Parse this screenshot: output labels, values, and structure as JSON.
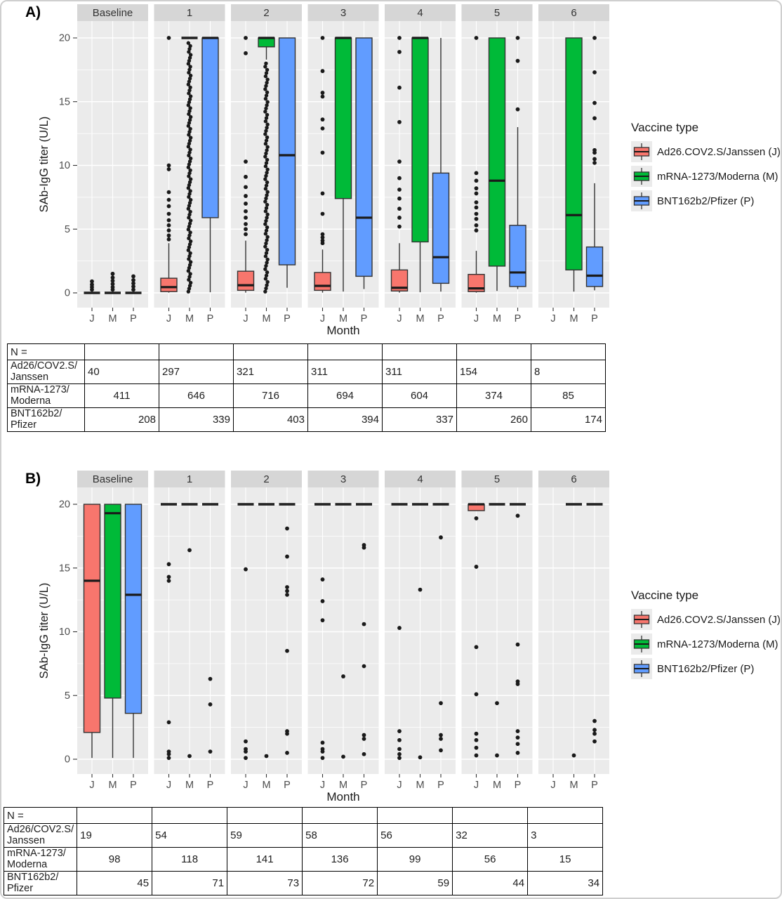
{
  "legend": {
    "title": "Vaccine type",
    "items": [
      {
        "key": "J",
        "label": "Ad26.COV2.S/Janssen (J)",
        "color": "#F8766D"
      },
      {
        "key": "M",
        "label": "mRNA-1273/Moderna (M)",
        "color": "#00BA38"
      },
      {
        "key": "P",
        "label": "BNT162b2/Pfizer (P)",
        "color": "#619CFF"
      }
    ]
  },
  "chart_data": [
    {
      "type": "boxplot-faceted",
      "panel_label": "A)",
      "ylabel": "SAb-IgG titer (U/L)",
      "xlabel": "Month",
      "ylim": [
        0,
        20
      ],
      "yticks": [
        0,
        5,
        10,
        15,
        20
      ],
      "grid": true,
      "facets": [
        "Baseline",
        "1",
        "2",
        "3",
        "4",
        "5",
        "6"
      ],
      "groups": [
        "J",
        "M",
        "P"
      ],
      "boxes": [
        {
          "f": "Baseline",
          "g": "J",
          "lo": 0,
          "q1": 0,
          "med": 0,
          "q3": 0,
          "hi": 0,
          "out": [
            0.25,
            0.45,
            0.65,
            0.9
          ]
        },
        {
          "f": "Baseline",
          "g": "M",
          "lo": 0,
          "q1": 0,
          "med": 0,
          "q3": 0,
          "hi": 0,
          "out": [
            0.25,
            0.45,
            0.7,
            0.95,
            1.2,
            1.5
          ]
        },
        {
          "f": "Baseline",
          "g": "P",
          "lo": 0,
          "q1": 0,
          "med": 0,
          "q3": 0,
          "hi": 0,
          "out": [
            0.25,
            0.5,
            0.75,
            1.0,
            1.3
          ]
        },
        {
          "f": "1",
          "g": "J",
          "lo": 0.02,
          "q1": 0.1,
          "med": 0.45,
          "q3": 1.15,
          "hi": 3.9,
          "out": [
            4.2,
            4.5,
            4.9,
            5.3,
            5.7,
            6.2,
            6.8,
            7.3,
            7.9,
            9.7,
            10.0,
            20
          ]
        },
        {
          "f": "1",
          "g": "M",
          "lo": 20,
          "q1": 20,
          "med": 20,
          "q3": 20,
          "hi": 20,
          "dense": [
            0.1,
            19.6,
            85
          ]
        },
        {
          "f": "1",
          "g": "P",
          "lo": 0.05,
          "q1": 5.9,
          "med": 20,
          "q3": 20,
          "hi": 20,
          "out": []
        },
        {
          "f": "2",
          "g": "J",
          "lo": 0.02,
          "q1": 0.2,
          "med": 0.6,
          "q3": 1.7,
          "hi": 4.1,
          "out": [
            4.6,
            5.0,
            5.4,
            5.9,
            6.4,
            7.0,
            7.6,
            8.3,
            9.1,
            10.3,
            18.8,
            20
          ]
        },
        {
          "f": "2",
          "g": "M",
          "lo": 18.3,
          "q1": 19.3,
          "med": 20,
          "q3": 20,
          "hi": 20,
          "dense": [
            0.1,
            18.0,
            72
          ]
        },
        {
          "f": "2",
          "g": "P",
          "lo": 0.4,
          "q1": 2.2,
          "med": 10.8,
          "q3": 20,
          "hi": 20,
          "out": []
        },
        {
          "f": "3",
          "g": "J",
          "lo": 0.02,
          "q1": 0.2,
          "med": 0.55,
          "q3": 1.6,
          "hi": 3.4,
          "out": [
            3.9,
            4.1,
            4.35,
            4.6,
            6.2,
            7.8,
            11.0,
            12.9,
            13.6,
            15.4,
            15.7,
            17.4,
            20
          ]
        },
        {
          "f": "3",
          "g": "M",
          "lo": 0.1,
          "q1": 7.4,
          "med": 20,
          "q3": 20,
          "hi": 20,
          "out": []
        },
        {
          "f": "3",
          "g": "P",
          "lo": 0.3,
          "q1": 1.3,
          "med": 5.9,
          "q3": 20,
          "hi": 20,
          "out": []
        },
        {
          "f": "4",
          "g": "J",
          "lo": 0.02,
          "q1": 0.15,
          "med": 0.4,
          "q3": 1.8,
          "hi": 3.9,
          "out": [
            5.2,
            5.9,
            6.6,
            7.4,
            8.1,
            9.0,
            10.3,
            13.4,
            16.1,
            18.9,
            20
          ]
        },
        {
          "f": "4",
          "g": "M",
          "lo": 0.05,
          "q1": 4.0,
          "med": 20,
          "q3": 20,
          "hi": 20,
          "out": []
        },
        {
          "f": "4",
          "g": "P",
          "lo": 0.1,
          "q1": 0.75,
          "med": 2.8,
          "q3": 9.4,
          "hi": 20,
          "out": []
        },
        {
          "f": "5",
          "g": "J",
          "lo": 0.02,
          "q1": 0.1,
          "med": 0.35,
          "q3": 1.45,
          "hi": 3.3,
          "out": [
            4.9,
            5.3,
            5.8,
            6.2,
            6.7,
            7.1,
            7.8,
            8.2,
            8.8,
            9.4,
            20
          ]
        },
        {
          "f": "5",
          "g": "M",
          "lo": 0.15,
          "q1": 2.1,
          "med": 8.8,
          "q3": 20,
          "hi": 20,
          "out": []
        },
        {
          "f": "5",
          "g": "P",
          "lo": 0.3,
          "q1": 0.5,
          "med": 1.6,
          "q3": 5.3,
          "hi": 13.0,
          "out": [
            14.4,
            18.2,
            20
          ]
        },
        {
          "f": "6",
          "g": "M",
          "lo": 0.1,
          "q1": 1.8,
          "med": 6.1,
          "q3": 20,
          "hi": 20,
          "out": []
        },
        {
          "f": "6",
          "g": "P",
          "lo": 0.2,
          "q1": 0.5,
          "med": 1.35,
          "q3": 3.6,
          "hi": 8.6,
          "out": [
            10.2,
            10.5,
            11.0,
            11.2,
            13.7,
            14.9,
            17.3,
            20
          ]
        }
      ]
    },
    {
      "type": "boxplot-faceted",
      "panel_label": "B)",
      "ylabel": "SAb-IgG titer (U/L)",
      "xlabel": "Month",
      "ylim": [
        0,
        20
      ],
      "yticks": [
        0,
        5,
        10,
        15,
        20
      ],
      "grid": true,
      "facets": [
        "Baseline",
        "1",
        "2",
        "3",
        "4",
        "5",
        "6"
      ],
      "groups": [
        "J",
        "M",
        "P"
      ],
      "boxes": [
        {
          "f": "Baseline",
          "g": "J",
          "lo": 0.1,
          "q1": 2.1,
          "med": 14.0,
          "q3": 20,
          "hi": 20,
          "out": []
        },
        {
          "f": "Baseline",
          "g": "M",
          "lo": 0.1,
          "q1": 4.8,
          "med": 19.3,
          "q3": 20,
          "hi": 20,
          "out": []
        },
        {
          "f": "Baseline",
          "g": "P",
          "lo": 0.1,
          "q1": 3.6,
          "med": 12.9,
          "q3": 20,
          "hi": 20,
          "out": []
        },
        {
          "f": "1",
          "g": "J",
          "lo": 20,
          "q1": 20,
          "med": 20,
          "q3": 20,
          "hi": 20,
          "out": [
            15.3,
            14.3,
            14.0,
            2.9,
            0.6,
            0.4,
            0.1
          ]
        },
        {
          "f": "1",
          "g": "M",
          "lo": 20,
          "q1": 20,
          "med": 20,
          "q3": 20,
          "hi": 20,
          "out": [
            16.4,
            0.25
          ]
        },
        {
          "f": "1",
          "g": "P",
          "lo": 20,
          "q1": 20,
          "med": 20,
          "q3": 20,
          "hi": 20,
          "out": [
            6.3,
            4.3,
            0.6
          ]
        },
        {
          "f": "2",
          "g": "J",
          "lo": 20,
          "q1": 20,
          "med": 20,
          "q3": 20,
          "hi": 20,
          "out": [
            14.9,
            1.4,
            0.8,
            0.6,
            0.1
          ]
        },
        {
          "f": "2",
          "g": "M",
          "lo": 20,
          "q1": 20,
          "med": 20,
          "q3": 20,
          "hi": 20,
          "out": [
            0.25
          ]
        },
        {
          "f": "2",
          "g": "P",
          "lo": 20,
          "q1": 20,
          "med": 20,
          "q3": 20,
          "hi": 20,
          "out": [
            18.1,
            15.9,
            13.5,
            13.2,
            12.9,
            8.5,
            2.2,
            2.0,
            0.5
          ]
        },
        {
          "f": "3",
          "g": "J",
          "lo": 20,
          "q1": 20,
          "med": 20,
          "q3": 20,
          "hi": 20,
          "out": [
            14.1,
            12.4,
            10.9,
            1.3,
            0.8,
            0.6,
            0.1
          ]
        },
        {
          "f": "3",
          "g": "M",
          "lo": 20,
          "q1": 20,
          "med": 20,
          "q3": 20,
          "hi": 20,
          "out": [
            6.5,
            0.2
          ]
        },
        {
          "f": "3",
          "g": "P",
          "lo": 20,
          "q1": 20,
          "med": 20,
          "q3": 20,
          "hi": 20,
          "out": [
            16.8,
            16.6,
            10.6,
            7.3,
            1.9,
            1.6,
            0.4
          ]
        },
        {
          "f": "4",
          "g": "J",
          "lo": 20,
          "q1": 20,
          "med": 20,
          "q3": 20,
          "hi": 20,
          "out": [
            10.3,
            2.2,
            1.5,
            0.8,
            0.4,
            0.1
          ]
        },
        {
          "f": "4",
          "g": "M",
          "lo": 20,
          "q1": 20,
          "med": 20,
          "q3": 20,
          "hi": 20,
          "out": [
            13.3,
            0.15
          ]
        },
        {
          "f": "4",
          "g": "P",
          "lo": 20,
          "q1": 20,
          "med": 20,
          "q3": 20,
          "hi": 20,
          "out": [
            17.4,
            4.4,
            1.9,
            1.6,
            0.7
          ]
        },
        {
          "f": "5",
          "g": "J",
          "lo": 19.5,
          "q1": 19.5,
          "med": 20,
          "q3": 20,
          "hi": 20,
          "out": [
            18.9,
            15.1,
            8.8,
            5.1,
            2.0,
            1.5,
            0.9,
            0.3
          ]
        },
        {
          "f": "5",
          "g": "M",
          "lo": 20,
          "q1": 20,
          "med": 20,
          "q3": 20,
          "hi": 20,
          "out": [
            4.4,
            0.3
          ]
        },
        {
          "f": "5",
          "g": "P",
          "lo": 20,
          "q1": 20,
          "med": 20,
          "q3": 20,
          "hi": 20,
          "out": [
            19.1,
            9.0,
            6.1,
            5.9,
            2.2,
            1.7,
            1.2,
            0.5
          ]
        },
        {
          "f": "6",
          "g": "M",
          "lo": 20,
          "q1": 20,
          "med": 20,
          "q3": 20,
          "hi": 20,
          "out": [
            0.3
          ]
        },
        {
          "f": "6",
          "g": "P",
          "lo": 20,
          "q1": 20,
          "med": 20,
          "q3": 20,
          "hi": 20,
          "out": [
            3.0,
            2.3,
            2.0,
            1.4
          ]
        }
      ]
    }
  ],
  "tables": [
    {
      "panel": "A",
      "header": "N =",
      "rows": [
        {
          "label_lines": [
            "Ad26/COV2.S/",
            "Janssen"
          ],
          "align": "left",
          "values": [
            40,
            297,
            321,
            311,
            311,
            154,
            8
          ]
        },
        {
          "label_lines": [
            "mRNA-1273/",
            "Moderna"
          ],
          "align": "center",
          "values": [
            411,
            646,
            716,
            694,
            604,
            374,
            85
          ]
        },
        {
          "label_lines": [
            "BNT162b2/",
            "Pfizer"
          ],
          "align": "right",
          "values": [
            208,
            339,
            403,
            394,
            337,
            260,
            174
          ]
        }
      ]
    },
    {
      "panel": "B",
      "header": "N =",
      "rows": [
        {
          "label_lines": [
            "Ad26/COV2.S/",
            "Janssen"
          ],
          "align": "left",
          "values": [
            19,
            54,
            59,
            58,
            56,
            32,
            3
          ]
        },
        {
          "label_lines": [
            "mRNA-1273/",
            "Moderna"
          ],
          "align": "center",
          "values": [
            98,
            118,
            141,
            136,
            99,
            56,
            15
          ]
        },
        {
          "label_lines": [
            "BNT162b2/",
            "Pfizer"
          ],
          "align": "right",
          "values": [
            45,
            71,
            73,
            72,
            59,
            44,
            34
          ]
        }
      ]
    }
  ],
  "style_colors": {
    "panel_bg": "#EBEBEB",
    "strip_bg": "#D6D6D6",
    "grid": "#FFFFFF",
    "box_stroke": "#333333",
    "median": "#1A1A1A",
    "dot": "#1A1A1A",
    "tick_text": "#4D4D4D",
    "title_text": "#1A1A1A"
  }
}
